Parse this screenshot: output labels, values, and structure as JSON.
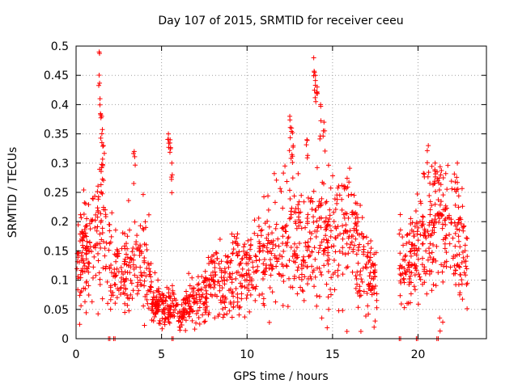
{
  "chart_data": {
    "type": "scatter",
    "title": "Day 107 of 2015, SRMTID for receiver ceeu",
    "xlabel": "GPS time / hours",
    "ylabel": "SRMTID / TECUs",
    "xlim": [
      0,
      24
    ],
    "ylim": [
      0,
      0.5
    ],
    "x_ticks": [
      0,
      5,
      10,
      15,
      20
    ],
    "y_ticks": [
      0,
      0.05,
      0.1,
      0.15,
      0.2,
      0.25,
      0.3,
      0.35,
      0.4,
      0.45,
      0.5
    ],
    "grid": true,
    "marker": "+",
    "series": [
      {
        "name": "SRMTID",
        "color": "#ff0000",
        "profile": [
          [
            0.0,
            0.14
          ],
          [
            1.0,
            0.15
          ],
          [
            1.5,
            0.22
          ],
          [
            2.0,
            0.12
          ],
          [
            3.0,
            0.12
          ],
          [
            4.0,
            0.14
          ],
          [
            4.5,
            0.06
          ],
          [
            5.5,
            0.06
          ],
          [
            6.0,
            0.04
          ],
          [
            7.0,
            0.07
          ],
          [
            8.0,
            0.09
          ],
          [
            9.0,
            0.1
          ],
          [
            10.0,
            0.12
          ],
          [
            11.0,
            0.14
          ],
          [
            12.0,
            0.17
          ],
          [
            13.0,
            0.16
          ],
          [
            14.0,
            0.16
          ],
          [
            15.0,
            0.18
          ],
          [
            16.0,
            0.19
          ],
          [
            17.0,
            0.12
          ],
          [
            17.5,
            0.1
          ],
          [
            19.0,
            0.12
          ],
          [
            20.0,
            0.15
          ],
          [
            21.0,
            0.2
          ],
          [
            22.0,
            0.17
          ],
          [
            23.0,
            0.13
          ]
        ],
        "gaps": [
          [
            17.6,
            18.9
          ],
          [
            22.9,
            24.0
          ]
        ],
        "outliers": [
          [
            1.35,
            0.49
          ],
          [
            1.4,
            0.41
          ],
          [
            1.5,
            0.38
          ],
          [
            1.6,
            0.33
          ],
          [
            3.4,
            0.32
          ],
          [
            5.4,
            0.35
          ],
          [
            5.5,
            0.34
          ],
          [
            5.6,
            0.3
          ],
          [
            12.5,
            0.38
          ],
          [
            12.6,
            0.36
          ],
          [
            12.7,
            0.33
          ],
          [
            13.9,
            0.48
          ],
          [
            14.0,
            0.45
          ],
          [
            14.1,
            0.43
          ],
          [
            14.3,
            0.4
          ],
          [
            14.5,
            0.37
          ],
          [
            13.5,
            0.34
          ],
          [
            20.6,
            0.33
          ],
          [
            21.0,
            0.3
          ],
          [
            22.3,
            0.3
          ]
        ],
        "zero_points": [
          1.9,
          2.2,
          5.6,
          18.9,
          19.9,
          21.1
        ]
      }
    ]
  }
}
